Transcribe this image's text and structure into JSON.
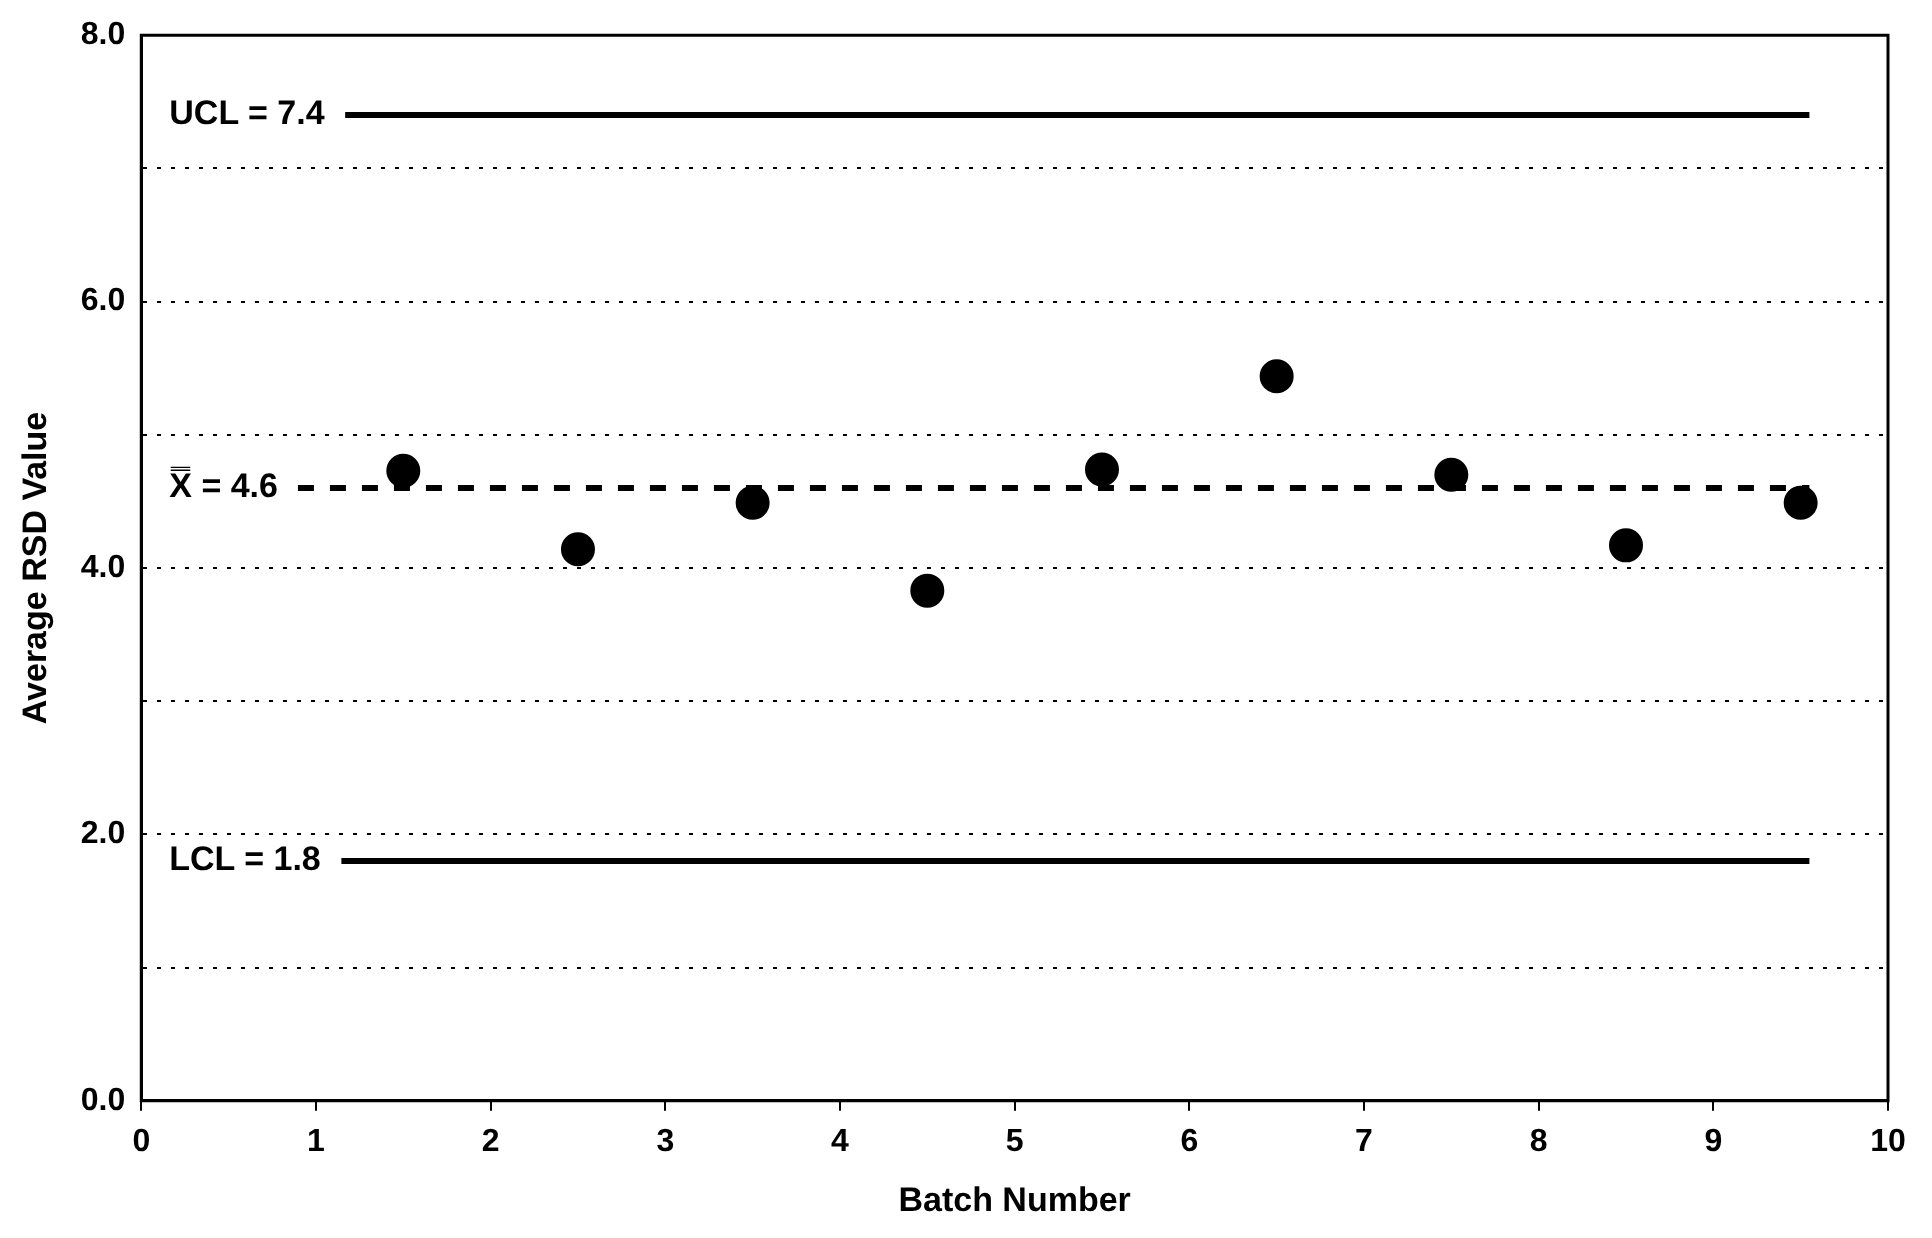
{
  "chart_data": {
    "type": "scatter",
    "xlabel": "Batch Number",
    "ylabel": "Average RSD Value",
    "x": [
      1.5,
      2.5,
      3.5,
      4.5,
      5.5,
      6.5,
      7.5,
      8.5,
      9.5
    ],
    "values": [
      4.73,
      4.14,
      4.49,
      3.83,
      4.74,
      5.44,
      4.7,
      4.17,
      4.49
    ],
    "color": "#000000",
    "marker": "circle",
    "xlim": [
      0,
      10
    ],
    "xticks": [
      0,
      1,
      2,
      3,
      4,
      5,
      6,
      7,
      8,
      9,
      10
    ],
    "ylim": [
      0,
      8
    ],
    "yticks": [
      {
        "value": 0,
        "label": "0.0"
      },
      {
        "value": 1,
        "label": null
      },
      {
        "value": 2,
        "label": "2.0"
      },
      {
        "value": 3,
        "label": null
      },
      {
        "value": 4,
        "label": "4.0"
      },
      {
        "value": 5,
        "label": null
      },
      {
        "value": 6,
        "label": "6.0"
      },
      {
        "value": 7,
        "label": null
      },
      {
        "value": 8,
        "label": "8.0"
      }
    ],
    "grid": "y",
    "legend": false,
    "ref_lines": [
      {
        "axis": "y",
        "value": 7.4,
        "label": "UCL = 7.4",
        "color": "#000000",
        "line_style": "solid"
      },
      {
        "axis": "y",
        "value": 4.6,
        "label": "X̿ = 4.6",
        "color": "#000000",
        "line_style": "dashed"
      },
      {
        "axis": "y",
        "value": 1.8,
        "label": "LCL = 1.8",
        "color": "#000000",
        "line_style": "solid"
      }
    ]
  }
}
